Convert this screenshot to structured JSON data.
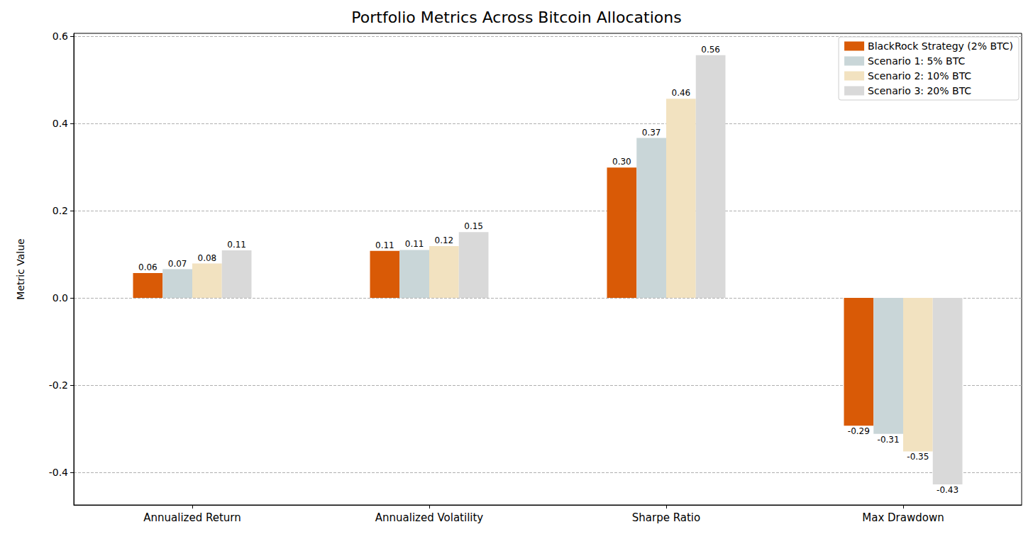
{
  "chart_data": {
    "type": "bar",
    "title": "Portfolio Metrics Across Bitcoin Allocations",
    "ylabel": "Metric Value",
    "categories": [
      "Annualized Return",
      "Annualized Volatility",
      "Sharpe Ratio",
      "Max Drawdown"
    ],
    "series": [
      {
        "name": "BlackRock Strategy (2% BTC)",
        "color": "#d95a06",
        "values": [
          0.057,
          0.108,
          0.299,
          -0.293
        ],
        "value_labels": [
          "0.06",
          "0.11",
          "0.30",
          "-0.29"
        ]
      },
      {
        "name": "Scenario 1: 5% BTC",
        "color": "#c9d6d8",
        "values": [
          0.066,
          0.11,
          0.367,
          -0.312
        ],
        "value_labels": [
          "0.07",
          "0.11",
          "0.37",
          "-0.31"
        ]
      },
      {
        "name": "Scenario 2: 10% BTC",
        "color": "#f2e2c0",
        "values": [
          0.079,
          0.119,
          0.457,
          -0.352
        ],
        "value_labels": [
          "0.08",
          "0.12",
          "0.46",
          "-0.35"
        ]
      },
      {
        "name": "Scenario 3: 20% BTC",
        "color": "#d9d9d9",
        "values": [
          0.109,
          0.151,
          0.557,
          -0.428
        ],
        "value_labels": [
          "0.11",
          "0.15",
          "0.56",
          "-0.43"
        ]
      }
    ],
    "ylim": [
      -0.475,
      0.607
    ],
    "yticks": [
      -0.4,
      -0.2,
      {
        "value": 0,
        "label": "0.0"
      },
      0.2,
      0.4,
      0.6
    ],
    "grid": true,
    "legend": "upper right",
    "data_labels": true
  }
}
